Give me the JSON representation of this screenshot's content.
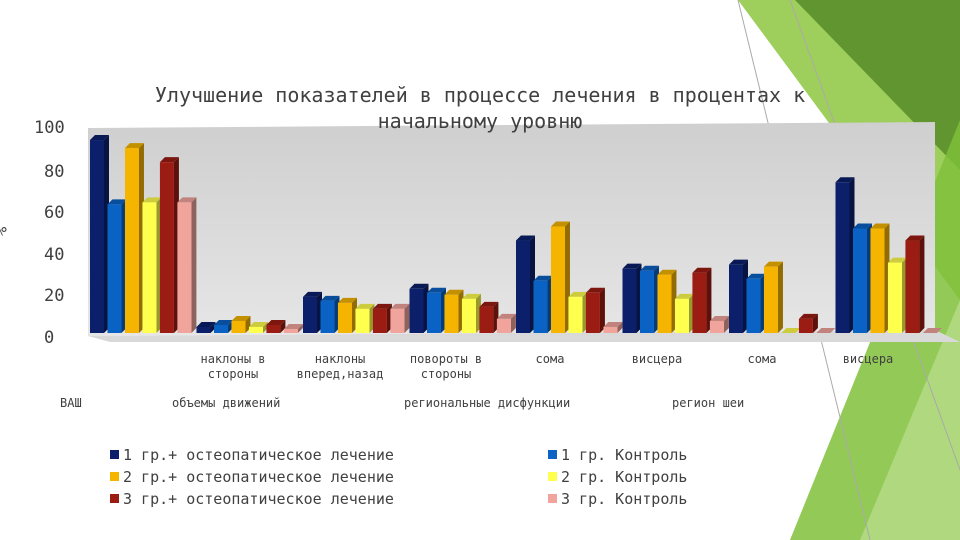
{
  "chart_data": {
    "type": "bar",
    "title": "Улучшение показателей в процессе лечения в процентах к начальному уровню",
    "ylabel": "%",
    "ylim": [
      0,
      100
    ],
    "yticks": [
      "0",
      "20",
      "40",
      "60",
      "80",
      "100"
    ],
    "grid": false,
    "categories": [
      "",
      "наклоны в стороны",
      "наклоны вперед,назад",
      "повороты в стороны",
      "сома",
      "висцера",
      "сома",
      "висцера"
    ],
    "category_groups": [
      {
        "label": "ВАШ"
      },
      {
        "label": "объемы движений"
      },
      {
        "label": "региональные дисфункции"
      },
      {
        "label": "регион шеи"
      }
    ],
    "series": [
      {
        "name": "1 гр.+ остеопатическое лечение",
        "color": "#0b1f6b",
        "values": [
          96,
          3,
          18,
          22,
          46,
          32,
          34,
          75
        ]
      },
      {
        "name": "1 гр. Контроль",
        "color": "#0a62c4",
        "values": [
          64,
          4,
          16,
          20,
          26,
          31,
          27,
          52
        ]
      },
      {
        "name": "2 гр.+ остеопатическое лечение",
        "color": "#f4b400",
        "values": [
          92,
          6,
          15,
          19,
          53,
          29,
          33,
          52
        ]
      },
      {
        "name": "2 гр. Контроль",
        "color": "#ffff4d",
        "values": [
          65,
          3,
          12,
          17,
          18,
          17,
          0,
          35
        ]
      },
      {
        "name": "3 гр.+ остеопатическое лечение",
        "color": "#9b1c13",
        "values": [
          85,
          4,
          12,
          13,
          20,
          30,
          7,
          46
        ]
      },
      {
        "name": "3 гр. Контроль",
        "color": "#f0a49c",
        "values": [
          65,
          2,
          12,
          7,
          3,
          6,
          0,
          0
        ]
      }
    ],
    "legend_position": "bottom"
  }
}
